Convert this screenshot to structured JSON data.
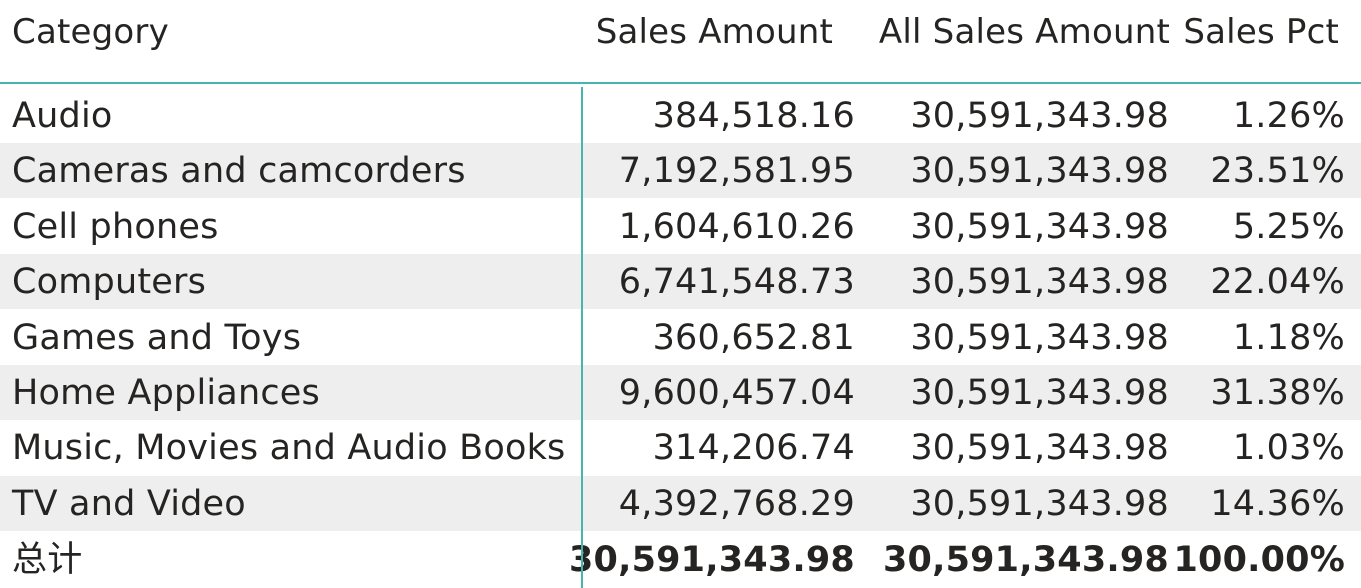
{
  "table": {
    "headers": {
      "category": "Category",
      "sales_amount": "Sales Amount",
      "all_sales_amount": "All Sales Amount",
      "sales_pct": "Sales Pct"
    },
    "rows": [
      {
        "category": "Audio",
        "sales_amount": "384,518.16",
        "all_sales_amount": "30,591,343.98",
        "sales_pct": "1.26%"
      },
      {
        "category": "Cameras and camcorders",
        "sales_amount": "7,192,581.95",
        "all_sales_amount": "30,591,343.98",
        "sales_pct": "23.51%"
      },
      {
        "category": "Cell phones",
        "sales_amount": "1,604,610.26",
        "all_sales_amount": "30,591,343.98",
        "sales_pct": "5.25%"
      },
      {
        "category": "Computers",
        "sales_amount": "6,741,548.73",
        "all_sales_amount": "30,591,343.98",
        "sales_pct": "22.04%"
      },
      {
        "category": "Games and Toys",
        "sales_amount": "360,652.81",
        "all_sales_amount": "30,591,343.98",
        "sales_pct": "1.18%"
      },
      {
        "category": "Home Appliances",
        "sales_amount": "9,600,457.04",
        "all_sales_amount": "30,591,343.98",
        "sales_pct": "31.38%"
      },
      {
        "category": "Music, Movies and Audio Books",
        "sales_amount": "314,206.74",
        "all_sales_amount": "30,591,343.98",
        "sales_pct": "1.03%"
      },
      {
        "category": "TV and Video",
        "sales_amount": "4,392,768.29",
        "all_sales_amount": "30,591,343.98",
        "sales_pct": "14.36%"
      }
    ],
    "total": {
      "category": "总计",
      "sales_amount": "30,591,343.98",
      "all_sales_amount": "30,591,343.98",
      "sales_pct": "100.00%"
    }
  },
  "colors": {
    "accent_line": "#46b5ad",
    "alt_row_bg": "#eeeeee",
    "text": "#252423"
  }
}
